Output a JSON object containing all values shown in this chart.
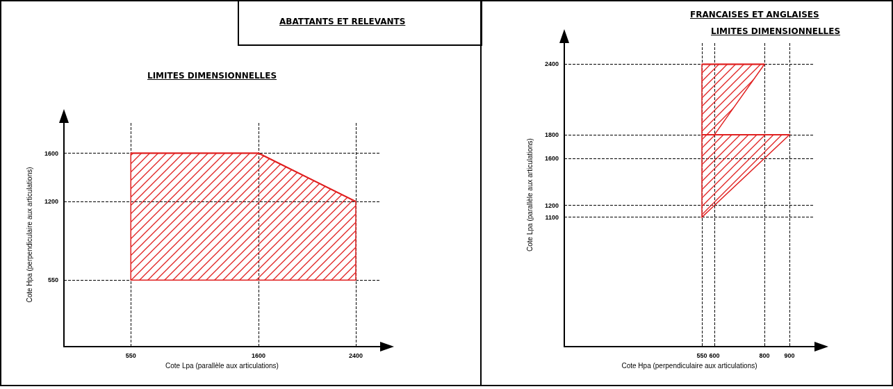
{
  "chart_data": [
    {
      "type": "line",
      "title": "ABATTANTS ET RELEVANTS",
      "subtitle": "LIMITES DIMENSIONNELLES",
      "xlabel": "Cote Lpa (parallèle aux articulations)",
      "ylabel": "Cote Hpa (perpendiculaire aux articulations)",
      "series": [
        {
          "color": "#e02020",
          "x": [
            550,
            1600,
            2400
          ],
          "values": [
            1600,
            1600,
            1200
          ],
          "upper": [
            1600,
            1600,
            1200
          ],
          "lower": [
            550,
            550,
            550
          ]
        }
      ],
      "xlim": [
        0,
        2600
      ],
      "xticks": [
        550,
        1600,
        2400
      ],
      "ylim": [
        0,
        1850
      ],
      "yticks": [
        550,
        1200,
        1600
      ],
      "grid": true
    },
    {
      "type": "line",
      "title": "FRANCAISES ET ANGLAISES",
      "subtitle": "LIMITES DIMENSIONNELLES",
      "xlabel": "Cote Hpa (perpendiculaire aux articulations)",
      "ylabel": "Cote Lpa (parallèle aux articulations)",
      "series": [
        {
          "color": "#e02020",
          "x": [
            550,
            900
          ],
          "values": [
            1800,
            1800
          ],
          "upper": [
            1800,
            1800
          ],
          "lower": [
            1100,
            1800
          ]
        },
        {
          "color": "#e02020",
          "x": [
            550,
            600,
            800
          ],
          "values": [
            2400,
            2400,
            2400
          ],
          "upper": [
            2400,
            2400,
            2400
          ],
          "lower": [
            1800,
            1800,
            2400
          ]
        }
      ],
      "xlim": [
        0,
        1000
      ],
      "xticks": [
        550,
        600,
        800,
        900
      ],
      "ylim": [
        0,
        2580
      ],
      "yticks": [
        1100,
        1200,
        1600,
        1800,
        2400
      ],
      "grid": true
    }
  ]
}
